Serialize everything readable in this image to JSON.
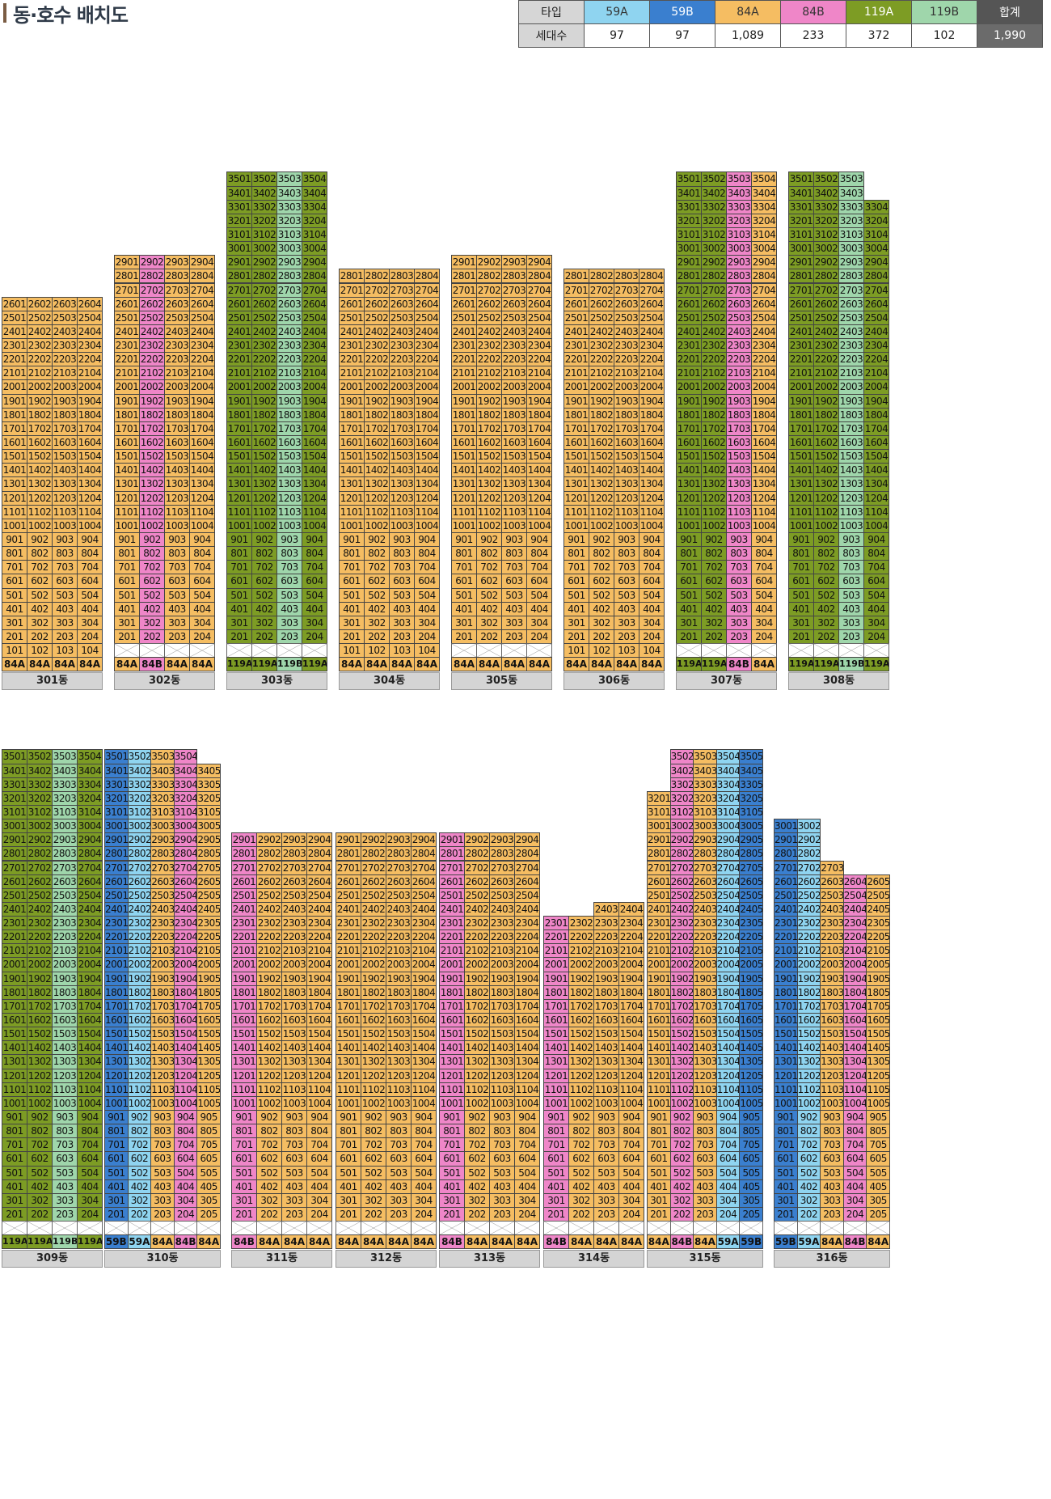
{
  "page": {
    "title": "동·호수 배치도"
  },
  "colors": {
    "59A": "#8fd4f0",
    "59B": "#3a7fcf",
    "84A": "#f5bd62",
    "84B": "#ef86c8",
    "119A": "#7d9c24",
    "119B": "#9fd6ab",
    "total": "#6b6b6b"
  },
  "legend": {
    "header_label": "타입",
    "count_label": "세대수",
    "types": [
      {
        "name": "59A",
        "count": "97"
      },
      {
        "name": "59B",
        "count": "97"
      },
      {
        "name": "84A",
        "count": "1,089"
      },
      {
        "name": "84B",
        "count": "233"
      },
      {
        "name": "119A",
        "count": "372"
      },
      {
        "name": "119B",
        "count": "102"
      }
    ],
    "total_label": "합계",
    "total_count": "1,990"
  },
  "buildings": [
    {
      "name": "301동",
      "lines": 4,
      "top_floor": [
        26,
        26,
        26,
        26
      ],
      "types": [
        "84A",
        "84A",
        "84A",
        "84A"
      ],
      "first_floor": "units"
    },
    {
      "name": "302동",
      "lines": 4,
      "top_floor": [
        29,
        29,
        29,
        29
      ],
      "types": [
        "84A",
        "84B",
        "84A",
        "84A"
      ],
      "first_floor": "pilotis"
    },
    {
      "name": "303동",
      "lines": 4,
      "top_floor": [
        35,
        35,
        35,
        35
      ],
      "types": [
        "119A",
        "119A",
        "119B",
        "119A"
      ],
      "first_floor": "pilotis"
    },
    {
      "name": "304동",
      "lines": 4,
      "top_floor": [
        28,
        28,
        28,
        28
      ],
      "types": [
        "84A",
        "84A",
        "84A",
        "84A"
      ],
      "first_floor": "units"
    },
    {
      "name": "305동",
      "lines": 4,
      "top_floor": [
        29,
        29,
        29,
        29
      ],
      "types": [
        "84A",
        "84A",
        "84A",
        "84A"
      ],
      "first_floor": "pilotis"
    },
    {
      "name": "306동",
      "lines": 4,
      "top_floor": [
        28,
        28,
        28,
        28
      ],
      "types": [
        "84A",
        "84A",
        "84A",
        "84A"
      ],
      "first_floor": "units"
    },
    {
      "name": "307동",
      "lines": 4,
      "top_floor": [
        35,
        35,
        35,
        35
      ],
      "types": [
        "119A",
        "119A",
        "84B",
        "84A"
      ],
      "first_floor": "pilotis"
    },
    {
      "name": "308동",
      "lines": 4,
      "top_floor": [
        35,
        35,
        35,
        33
      ],
      "types": [
        "119A",
        "119A",
        "119B",
        "119A"
      ],
      "first_floor": "pilotis"
    },
    {
      "name": "309동",
      "lines": 4,
      "top_floor": [
        35,
        35,
        35,
        35
      ],
      "types": [
        "119A",
        "119A",
        "119B",
        "119A"
      ],
      "first_floor": "pilotis"
    },
    {
      "name": "310동",
      "lines": 5,
      "top_floor": [
        35,
        35,
        35,
        35,
        34
      ],
      "types": [
        "59B",
        "59A",
        "84A",
        "84B",
        "84A"
      ],
      "first_floor": "pilotis"
    },
    {
      "name": "311동",
      "lines": 4,
      "top_floor": [
        29,
        29,
        29,
        29
      ],
      "types": [
        "84B",
        "84A",
        "84A",
        "84A"
      ],
      "first_floor": "pilotis"
    },
    {
      "name": "312동",
      "lines": 4,
      "top_floor": [
        29,
        29,
        29,
        29
      ],
      "types": [
        "84A",
        "84A",
        "84A",
        "84A"
      ],
      "first_floor": "pilotis"
    },
    {
      "name": "313동",
      "lines": 4,
      "top_floor": [
        29,
        29,
        29,
        29
      ],
      "types": [
        "84B",
        "84A",
        "84A",
        "84A"
      ],
      "first_floor": "pilotis"
    },
    {
      "name": "314동",
      "lines": 4,
      "top_floor": [
        23,
        23,
        24,
        24
      ],
      "types": [
        "84B",
        "84A",
        "84A",
        "84A"
      ],
      "first_floor": "pilotis"
    },
    {
      "name": "315동",
      "lines": 5,
      "top_floor": [
        32,
        35,
        35,
        35,
        35
      ],
      "types": [
        "84A",
        "84B",
        "84A",
        "59A",
        "59B"
      ],
      "first_floor": "pilotis"
    },
    {
      "name": "316동",
      "lines": 5,
      "top_floor": [
        30,
        30,
        27,
        26,
        26
      ],
      "types": [
        "59B",
        "59A",
        "84A",
        "84B",
        "84A"
      ],
      "first_floor": "pilotis"
    }
  ]
}
